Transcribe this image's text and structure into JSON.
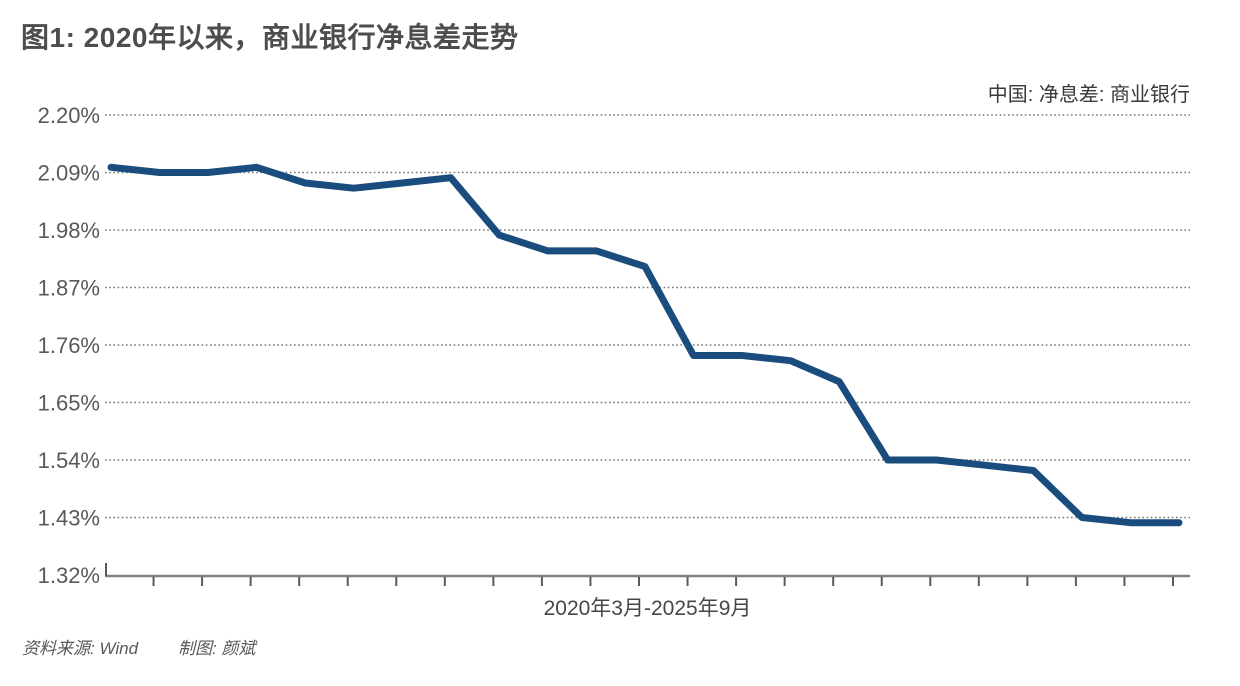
{
  "chart_data": {
    "type": "line",
    "title": "图1: 2020年以来，商业银行净息差走势",
    "series_name": "中国: 净息差: 商业银行",
    "xlabel": "2020年3月-2025年9月",
    "ylabel": "",
    "unit": "%",
    "x": [
      "2020-03",
      "2020-06",
      "2020-09",
      "2020-12",
      "2021-03",
      "2021-06",
      "2021-09",
      "2021-12",
      "2022-03",
      "2022-06",
      "2022-09",
      "2022-12",
      "2023-03",
      "2023-06",
      "2023-09",
      "2023-12",
      "2024-03",
      "2024-06",
      "2024-09",
      "2024-12",
      "2025-03",
      "2025-06",
      "2025-09"
    ],
    "values": [
      2.1,
      2.09,
      2.09,
      2.1,
      2.07,
      2.06,
      2.07,
      2.08,
      1.97,
      1.94,
      1.94,
      1.91,
      1.74,
      1.74,
      1.73,
      1.69,
      1.54,
      1.54,
      1.53,
      1.52,
      1.43,
      1.42,
      1.42
    ],
    "ylim": [
      1.32,
      2.2
    ],
    "ytick_values": [
      2.2,
      2.09,
      1.98,
      1.87,
      1.76,
      1.65,
      1.54,
      1.43,
      1.32
    ],
    "ytick_labels": [
      "2.20%",
      "2.09%",
      "1.98%",
      "1.87%",
      "1.76%",
      "1.65%",
      "1.54%",
      "1.43%",
      "1.32%"
    ],
    "grid": "horizontal-dotted",
    "legend_position": "top-right",
    "colors": {
      "line": "#1a4d7d",
      "grid": "#767676",
      "axis": "#808080",
      "tick": "#5a5a5a"
    }
  },
  "footer": {
    "source": "资料来源: Wind",
    "author": "制图: 颜斌"
  }
}
